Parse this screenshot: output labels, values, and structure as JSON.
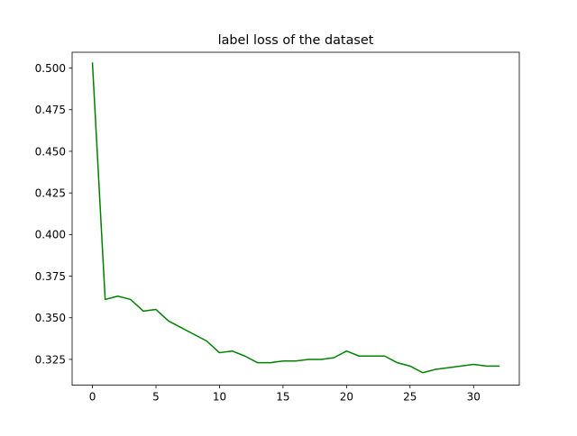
{
  "chart_data": {
    "type": "line",
    "title": "label loss of the dataset",
    "xlabel": "",
    "ylabel": "",
    "xlim": [
      -1.6,
      33.6
    ],
    "ylim": [
      0.3095,
      0.5095
    ],
    "xticks": [
      0,
      5,
      10,
      15,
      20,
      25,
      30
    ],
    "yticks": [
      0.325,
      0.35,
      0.375,
      0.4,
      0.425,
      0.45,
      0.475,
      0.5
    ],
    "xtick_labels": [
      "0",
      "5",
      "10",
      "15",
      "20",
      "25",
      "30"
    ],
    "ytick_labels": [
      "0.325",
      "0.350",
      "0.375",
      "0.400",
      "0.425",
      "0.450",
      "0.475",
      "0.500"
    ],
    "grid": false,
    "series": [
      {
        "color": "#008000",
        "x": [
          0,
          1,
          2,
          3,
          4,
          5,
          6,
          7,
          8,
          9,
          10,
          11,
          12,
          13,
          14,
          15,
          16,
          17,
          18,
          19,
          20,
          21,
          22,
          23,
          24,
          25,
          26,
          27,
          28,
          29,
          30,
          31,
          32
        ],
        "values": [
          0.503,
          0.361,
          0.363,
          0.361,
          0.354,
          0.355,
          0.348,
          0.344,
          0.34,
          0.336,
          0.329,
          0.33,
          0.327,
          0.323,
          0.323,
          0.324,
          0.324,
          0.325,
          0.325,
          0.326,
          0.33,
          0.327,
          0.327,
          0.327,
          0.323,
          0.321,
          0.317,
          0.319,
          0.32,
          0.321,
          0.322,
          0.321,
          0.321
        ]
      }
    ]
  }
}
